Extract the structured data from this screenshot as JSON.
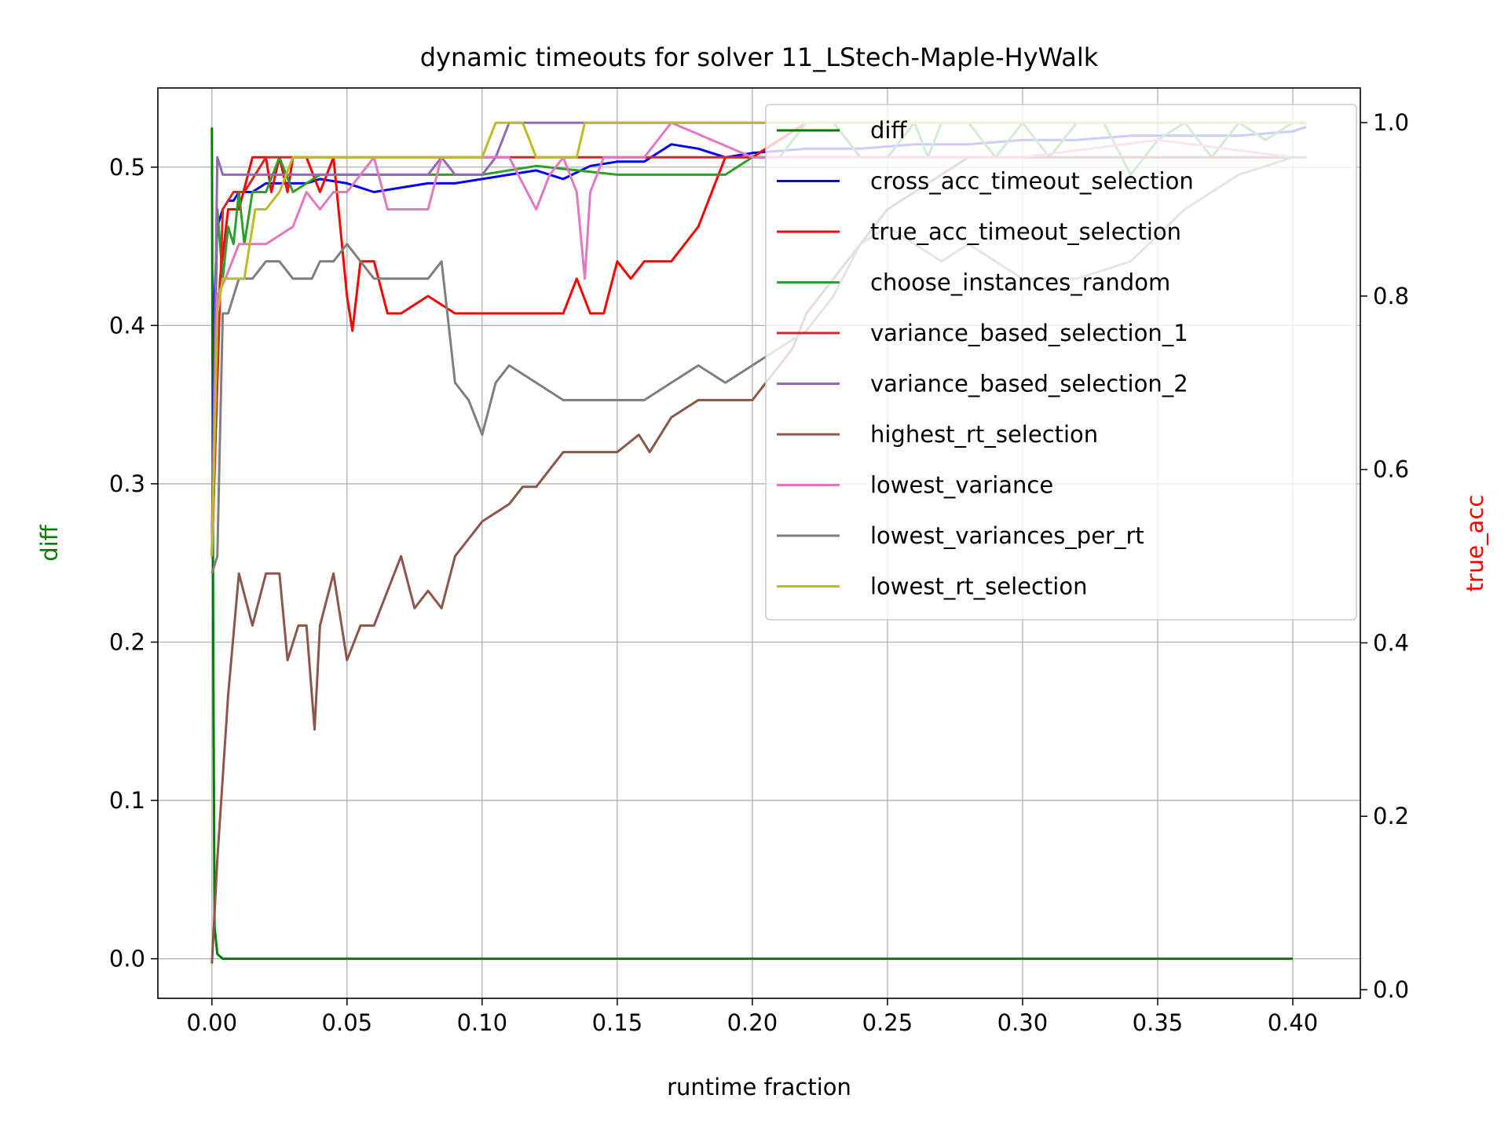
{
  "chart_data": {
    "type": "line",
    "title": "dynamic timeouts for solver 11_LStech-Maple-HyWalk",
    "xlabel": "runtime fraction",
    "ylabel_left": "diff",
    "ylabel_right": "true_acc",
    "xlim": [
      -0.02,
      0.425
    ],
    "ylim_left": [
      -0.025,
      0.55
    ],
    "ylim_right": [
      -0.01,
      1.04
    ],
    "xticks": [
      "0.00",
      "0.05",
      "0.10",
      "0.15",
      "0.20",
      "0.25",
      "0.30",
      "0.35",
      "0.40"
    ],
    "yticks_left": [
      "0.0",
      "0.1",
      "0.2",
      "0.3",
      "0.4",
      "0.5"
    ],
    "yticks_right": [
      "0.0",
      "0.2",
      "0.4",
      "0.6",
      "0.8",
      "1.0"
    ],
    "grid": true,
    "legend_position": "top-right",
    "colors": {
      "left_axis_label": "#008000",
      "right_axis_label": "#ff0000"
    },
    "series": [
      {
        "name": "diff",
        "axis": "left",
        "color": "#008000",
        "style": "solid",
        "x": [
          0,
          0.0005,
          0.001,
          0.002,
          0.004,
          0.4
        ],
        "y": [
          0.525,
          0.2,
          0.02,
          0.003,
          0,
          0
        ]
      },
      {
        "name": "cross_acc_timeout_selection",
        "axis": "right",
        "color": "#0000ff",
        "x": [
          0,
          0.001,
          0.002,
          0.004,
          0.006,
          0.008,
          0.01,
          0.015,
          0.02,
          0.025,
          0.03,
          0.035,
          0.04,
          0.05,
          0.06,
          0.07,
          0.08,
          0.09,
          0.1,
          0.11,
          0.12,
          0.13,
          0.14,
          0.15,
          0.16,
          0.17,
          0.18,
          0.19,
          0.2,
          0.22,
          0.24,
          0.26,
          0.28,
          0.3,
          0.32,
          0.34,
          0.36,
          0.38,
          0.4,
          0.405
        ],
        "y": [
          0.5,
          0.8,
          0.88,
          0.9,
          0.91,
          0.91,
          0.92,
          0.92,
          0.93,
          0.93,
          0.93,
          0.93,
          0.935,
          0.93,
          0.92,
          0.925,
          0.93,
          0.93,
          0.935,
          0.94,
          0.945,
          0.935,
          0.95,
          0.955,
          0.955,
          0.975,
          0.97,
          0.96,
          0.965,
          0.97,
          0.97,
          0.975,
          0.975,
          0.98,
          0.98,
          0.985,
          0.985,
          0.985,
          0.99,
          0.995
        ]
      },
      {
        "name": "true_acc_timeout_selection",
        "axis": "right",
        "color": "#ff0000",
        "x": [
          0,
          0.003,
          0.006,
          0.01,
          0.015,
          0.02,
          0.022,
          0.025,
          0.028,
          0.03,
          0.035,
          0.04,
          0.045,
          0.05,
          0.052,
          0.055,
          0.06,
          0.065,
          0.07,
          0.08,
          0.09,
          0.1,
          0.13,
          0.135,
          0.14,
          0.145,
          0.15,
          0.155,
          0.16,
          0.17,
          0.18,
          0.19,
          0.2,
          0.22,
          0.23,
          0.24,
          0.26,
          0.28,
          0.3,
          0.32,
          0.34,
          0.36,
          0.38,
          0.4,
          0.405
        ],
        "y": [
          0.5,
          0.82,
          0.9,
          0.9,
          0.96,
          0.96,
          0.92,
          0.96,
          0.92,
          0.96,
          0.96,
          0.92,
          0.96,
          0.8,
          0.76,
          0.84,
          0.84,
          0.78,
          0.78,
          0.8,
          0.78,
          0.78,
          0.78,
          0.82,
          0.78,
          0.78,
          0.84,
          0.82,
          0.84,
          0.84,
          0.88,
          0.96,
          0.96,
          1.0,
          1.0,
          0.96,
          0.96,
          0.96,
          0.96,
          0.96,
          0.96,
          0.96,
          0.96,
          0.96,
          0.96
        ]
      },
      {
        "name": "choose_instances_random",
        "axis": "right",
        "color": "#2ca02c",
        "x": [
          0,
          0.002,
          0.004,
          0.006,
          0.008,
          0.01,
          0.012,
          0.015,
          0.02,
          0.025,
          0.03,
          0.04,
          0.06,
          0.08,
          0.1,
          0.12,
          0.15,
          0.17,
          0.19,
          0.2,
          0.21,
          0.22,
          0.23,
          0.24,
          0.25,
          0.26,
          0.265,
          0.27,
          0.28,
          0.29,
          0.3,
          0.31,
          0.32,
          0.33,
          0.34,
          0.35,
          0.36,
          0.37,
          0.38,
          0.39,
          0.4,
          0.405
        ],
        "y": [
          0.5,
          0.9,
          0.82,
          0.88,
          0.86,
          0.92,
          0.86,
          0.92,
          0.92,
          0.96,
          0.92,
          0.94,
          0.94,
          0.94,
          0.94,
          0.95,
          0.94,
          0.94,
          0.94,
          0.96,
          0.96,
          1.0,
          1.0,
          0.96,
          0.96,
          1.0,
          0.96,
          1.0,
          1.0,
          0.96,
          1.0,
          0.96,
          1.0,
          1.0,
          0.94,
          0.98,
          1.0,
          0.96,
          1.0,
          0.98,
          1.0,
          1.0
        ]
      },
      {
        "name": "variance_based_selection_1",
        "axis": "right",
        "color": "#d62728",
        "x": [
          0,
          0.004,
          0.008,
          0.012,
          0.016,
          0.02,
          0.025,
          0.03,
          0.035,
          0.04,
          0.05,
          0.08,
          0.1,
          0.15,
          0.2,
          0.25,
          0.3,
          0.35,
          0.4,
          0.405
        ],
        "y": [
          0.5,
          0.9,
          0.92,
          0.92,
          0.94,
          0.96,
          0.96,
          0.96,
          0.96,
          0.96,
          0.96,
          0.96,
          0.96,
          0.96,
          0.96,
          0.96,
          0.96,
          0.96,
          0.96,
          0.96
        ]
      },
      {
        "name": "variance_based_selection_2",
        "axis": "right",
        "color": "#9467bd",
        "x": [
          0,
          0.002,
          0.004,
          0.006,
          0.05,
          0.08,
          0.085,
          0.09,
          0.1,
          0.105,
          0.11,
          0.13,
          0.2,
          0.3,
          0.4,
          0.405
        ],
        "y": [
          0.5,
          0.96,
          0.94,
          0.94,
          0.94,
          0.94,
          0.96,
          0.94,
          0.94,
          0.96,
          1.0,
          1.0,
          1.0,
          1.0,
          1.0,
          1.0
        ]
      },
      {
        "name": "highest_rt_selection",
        "axis": "right",
        "color": "#8c564b",
        "x": [
          0,
          0.002,
          0.006,
          0.01,
          0.015,
          0.02,
          0.025,
          0.028,
          0.032,
          0.035,
          0.038,
          0.04,
          0.045,
          0.05,
          0.055,
          0.06,
          0.07,
          0.075,
          0.08,
          0.085,
          0.09,
          0.095,
          0.1,
          0.11,
          0.115,
          0.12,
          0.13,
          0.14,
          0.15,
          0.158,
          0.162,
          0.17,
          0.18,
          0.19,
          0.2,
          0.205,
          0.21,
          0.215,
          0.22,
          0.23,
          0.24,
          0.245,
          0.25,
          0.26,
          0.27,
          0.28,
          0.3,
          0.32,
          0.34,
          0.36,
          0.38,
          0.4,
          0.405
        ],
        "y": [
          0.03,
          0.15,
          0.34,
          0.48,
          0.42,
          0.48,
          0.48,
          0.38,
          0.42,
          0.42,
          0.3,
          0.42,
          0.48,
          0.38,
          0.42,
          0.42,
          0.5,
          0.44,
          0.46,
          0.44,
          0.5,
          0.52,
          0.54,
          0.56,
          0.58,
          0.58,
          0.62,
          0.62,
          0.62,
          0.64,
          0.62,
          0.66,
          0.68,
          0.68,
          0.68,
          0.7,
          0.72,
          0.74,
          0.78,
          0.82,
          0.86,
          0.88,
          0.9,
          0.92,
          0.94,
          0.96,
          0.96,
          0.96,
          0.96,
          0.96,
          0.96,
          0.96,
          0.96
        ]
      },
      {
        "name": "lowest_variance",
        "axis": "right",
        "color": "#e377c2",
        "x": [
          0,
          0.002,
          0.005,
          0.01,
          0.015,
          0.02,
          0.03,
          0.035,
          0.04,
          0.045,
          0.05,
          0.06,
          0.065,
          0.07,
          0.08,
          0.085,
          0.09,
          0.1,
          0.11,
          0.12,
          0.125,
          0.13,
          0.135,
          0.138,
          0.14,
          0.145,
          0.15,
          0.16,
          0.17,
          0.2,
          0.25,
          0.3,
          0.35,
          0.4,
          0.405
        ],
        "y": [
          0.5,
          0.8,
          0.82,
          0.86,
          0.86,
          0.86,
          0.88,
          0.92,
          0.9,
          0.92,
          0.92,
          0.96,
          0.9,
          0.9,
          0.9,
          0.96,
          0.96,
          0.96,
          0.96,
          0.9,
          0.94,
          0.96,
          0.92,
          0.82,
          0.92,
          0.96,
          0.96,
          0.96,
          1.0,
          0.96,
          0.96,
          0.96,
          0.98,
          0.96,
          0.96
        ]
      },
      {
        "name": "lowest_variances_per_rt",
        "axis": "right",
        "color": "#7f7f7f",
        "x": [
          0,
          0.002,
          0.004,
          0.006,
          0.01,
          0.015,
          0.02,
          0.025,
          0.03,
          0.037,
          0.04,
          0.045,
          0.05,
          0.055,
          0.06,
          0.07,
          0.08,
          0.085,
          0.09,
          0.095,
          0.1,
          0.105,
          0.11,
          0.12,
          0.13,
          0.14,
          0.15,
          0.16,
          0.17,
          0.18,
          0.19,
          0.2,
          0.21,
          0.22,
          0.23,
          0.24,
          0.25,
          0.26,
          0.27,
          0.28,
          0.29,
          0.3,
          0.32,
          0.34,
          0.36,
          0.38,
          0.4,
          0.405
        ],
        "y": [
          0.48,
          0.5,
          0.78,
          0.78,
          0.82,
          0.82,
          0.84,
          0.84,
          0.82,
          0.82,
          0.84,
          0.84,
          0.86,
          0.84,
          0.82,
          0.82,
          0.82,
          0.84,
          0.7,
          0.68,
          0.64,
          0.7,
          0.72,
          0.7,
          0.68,
          0.68,
          0.68,
          0.68,
          0.7,
          0.72,
          0.7,
          0.72,
          0.74,
          0.76,
          0.8,
          0.86,
          0.88,
          0.86,
          0.84,
          0.86,
          0.84,
          0.82,
          0.82,
          0.84,
          0.9,
          0.94,
          0.96,
          0.96
        ]
      },
      {
        "name": "lowest_rt_selection",
        "axis": "right",
        "color": "#bcbd22",
        "x": [
          0,
          0.002,
          0.004,
          0.008,
          0.012,
          0.016,
          0.02,
          0.025,
          0.03,
          0.035,
          0.04,
          0.06,
          0.08,
          0.1,
          0.105,
          0.115,
          0.12,
          0.13,
          0.135,
          0.138,
          0.2,
          0.3,
          0.4,
          0.405
        ],
        "y": [
          0.5,
          0.78,
          0.82,
          0.82,
          0.82,
          0.9,
          0.9,
          0.92,
          0.96,
          0.96,
          0.96,
          0.96,
          0.96,
          0.96,
          1.0,
          1.0,
          0.96,
          0.96,
          0.96,
          1.0,
          1.0,
          1.0,
          1.0,
          1.0
        ]
      }
    ]
  }
}
